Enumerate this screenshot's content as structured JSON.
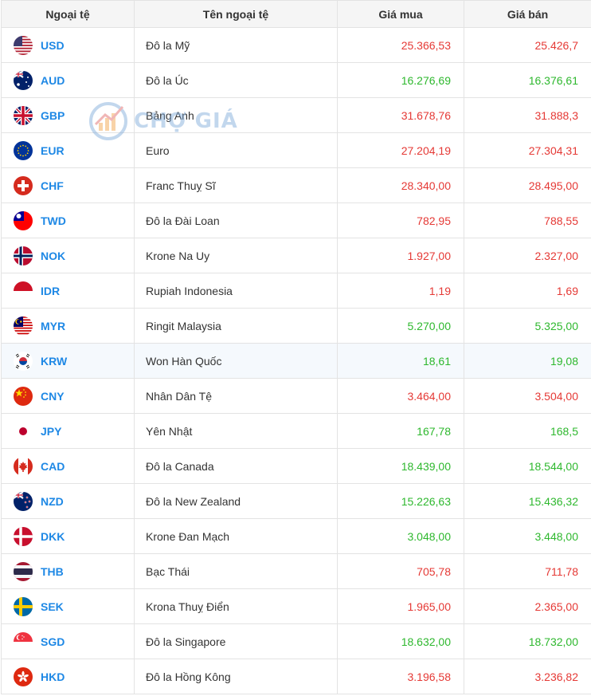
{
  "headers": {
    "code": "Ngoại tệ",
    "name": "Tên ngoại tệ",
    "buy": "Giá mua",
    "sell": "Giá bán"
  },
  "watermark": "CHỢ GIÁ",
  "colors": {
    "up": "#e53935",
    "down": "#2eb82e",
    "code": "#1e88e5"
  },
  "rows": [
    {
      "code": "USD",
      "name": "Đô la Mỹ",
      "buy": "25.366,53",
      "sell": "25.426,7",
      "trend": "up"
    },
    {
      "code": "AUD",
      "name": "Đô la Úc",
      "buy": "16.276,69",
      "sell": "16.376,61",
      "trend": "down"
    },
    {
      "code": "GBP",
      "name": "Bảng Anh",
      "buy": "31.678,76",
      "sell": "31.888,3",
      "trend": "up"
    },
    {
      "code": "EUR",
      "name": "Euro",
      "buy": "27.204,19",
      "sell": "27.304,31",
      "trend": "up"
    },
    {
      "code": "CHF",
      "name": "Franc Thuỵ Sĩ",
      "buy": "28.340,00",
      "sell": "28.495,00",
      "trend": "up"
    },
    {
      "code": "TWD",
      "name": "Đô la Đài Loan",
      "buy": "782,95",
      "sell": "788,55",
      "trend": "up"
    },
    {
      "code": "NOK",
      "name": "Krone Na Uy",
      "buy": "1.927,00",
      "sell": "2.327,00",
      "trend": "up"
    },
    {
      "code": "IDR",
      "name": "Rupiah Indonesia",
      "buy": "1,19",
      "sell": "1,69",
      "trend": "up"
    },
    {
      "code": "MYR",
      "name": "Ringit Malaysia",
      "buy": "5.270,00",
      "sell": "5.325,00",
      "trend": "down"
    },
    {
      "code": "KRW",
      "name": "Won Hàn Quốc",
      "buy": "18,61",
      "sell": "19,08",
      "trend": "down"
    },
    {
      "code": "CNY",
      "name": "Nhân Dân Tệ",
      "buy": "3.464,00",
      "sell": "3.504,00",
      "trend": "up"
    },
    {
      "code": "JPY",
      "name": "Yên Nhật",
      "buy": "167,78",
      "sell": "168,5",
      "trend": "down"
    },
    {
      "code": "CAD",
      "name": "Đô la Canada",
      "buy": "18.439,00",
      "sell": "18.544,00",
      "trend": "down"
    },
    {
      "code": "NZD",
      "name": "Đô la New Zealand",
      "buy": "15.226,63",
      "sell": "15.436,32",
      "trend": "down"
    },
    {
      "code": "DKK",
      "name": "Krone Đan Mạch",
      "buy": "3.048,00",
      "sell": "3.448,00",
      "trend": "down"
    },
    {
      "code": "THB",
      "name": "Bạc Thái",
      "buy": "705,78",
      "sell": "711,78",
      "trend": "up"
    },
    {
      "code": "SEK",
      "name": "Krona Thuỵ Điển",
      "buy": "1.965,00",
      "sell": "2.365,00",
      "trend": "up"
    },
    {
      "code": "SGD",
      "name": "Đô la Singapore",
      "buy": "18.632,00",
      "sell": "18.732,00",
      "trend": "down"
    },
    {
      "code": "HKD",
      "name": "Đô la Hồng Kông",
      "buy": "3.196,58",
      "sell": "3.236,82",
      "trend": "up"
    }
  ]
}
